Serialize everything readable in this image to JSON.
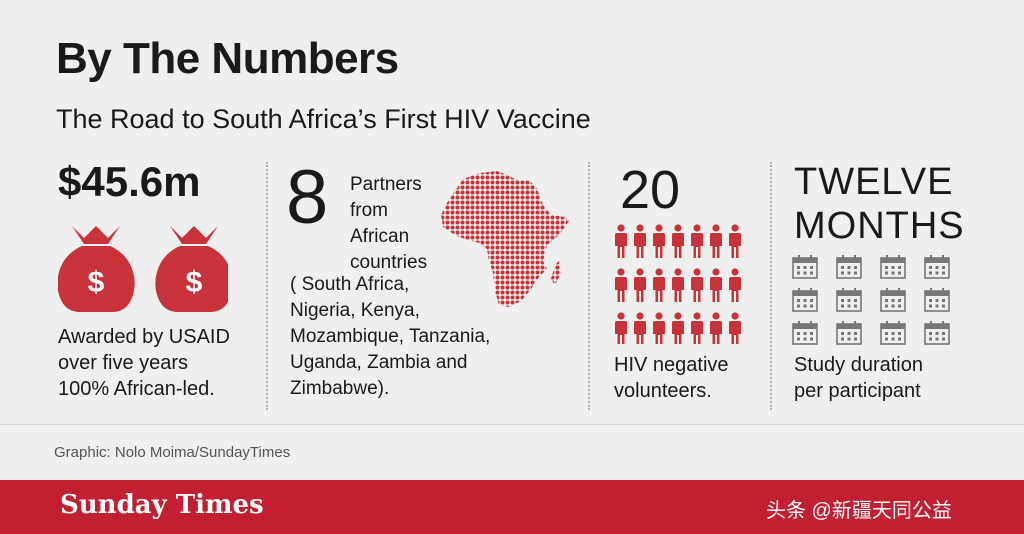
{
  "header": {
    "title": "By The Numbers",
    "subtitle": "The Road to South Africa’s First HIV Vaccine"
  },
  "funding": {
    "amount": "$45.6m",
    "icon": "money-bag-icon",
    "icon_glyph": "$",
    "description_lines": [
      "Awarded by USAID",
      "over five years",
      "100% African-led."
    ]
  },
  "partners": {
    "count": "8",
    "label_lines": [
      "Partners",
      "from",
      "African",
      "countries"
    ],
    "countries_lines": [
      "( South Africa,",
      "Nigeria, Kenya,",
      "Mozambique, Tanzania,",
      "Uganda, Zambia and",
      "Zimbabwe)."
    ],
    "map_icon": "africa-map-icon"
  },
  "volunteers": {
    "count": "20",
    "icon": "person-icon",
    "description_lines": [
      "HIV negative",
      "volunteers."
    ]
  },
  "duration": {
    "title_lines": [
      "TWELVE",
      "MONTHS"
    ],
    "icon": "calendar-icon",
    "description_lines": [
      "Study duration",
      "per participant"
    ]
  },
  "credit": "Graphic: Nolo Moima/SundayTimes",
  "footer": {
    "logo": "Sunday Times",
    "watermark": "头条 @新疆天同公益"
  },
  "colors": {
    "accent_red": "#c8333b",
    "footer_red": "#c22030",
    "background": "#efefef"
  }
}
